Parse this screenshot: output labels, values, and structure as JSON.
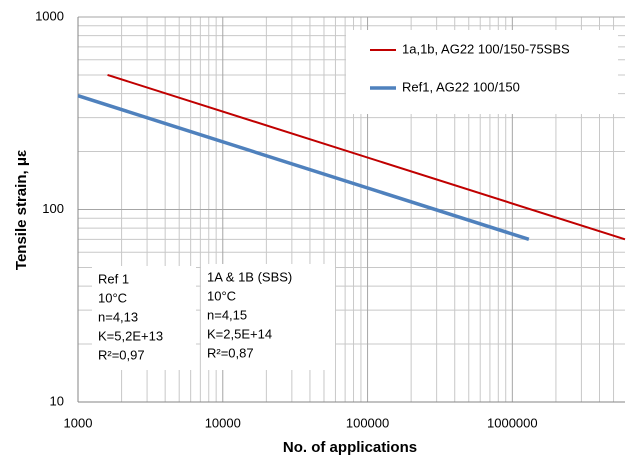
{
  "chart_data": {
    "type": "line",
    "x_label": "No. of applications",
    "y_label": "Tensile strain, με",
    "xscale": "log",
    "yscale": "log",
    "xlim": [
      1000,
      6000000
    ],
    "ylim": [
      10,
      1000
    ],
    "xticks": [
      1000,
      10000,
      100000,
      1000000
    ],
    "yticks": [
      10,
      100,
      1000
    ],
    "grid": true,
    "minor_grid": true,
    "legend": "upper right",
    "series": [
      {
        "name": "1a,1b, AG22 100/150-75SBS",
        "color": "#c00000",
        "x": [
          1600,
          6000000
        ],
        "values": [
          500,
          70
        ]
      },
      {
        "name": "Ref1, AG22 100/150",
        "color": "#4f81bd",
        "x": [
          1000,
          1300000
        ],
        "values": [
          390,
          70
        ]
      }
    ],
    "annotations": [
      [
        "Ref 1",
        "10°C",
        "n=4,13",
        "K=5,2E+13",
        "R²=0,97"
      ],
      [
        "1A & 1B (SBS)",
        "10°C",
        "n=4,15",
        "K=2,5E+14",
        "R²=0,87"
      ]
    ]
  }
}
